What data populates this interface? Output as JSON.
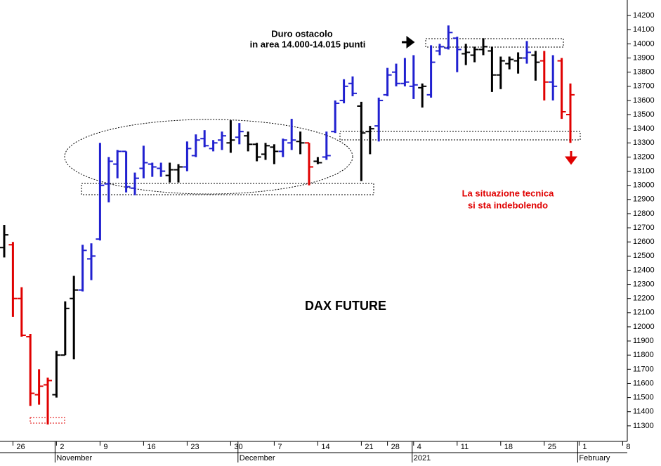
{
  "chart_data": {
    "type": "ohlc",
    "title": "DAX FUTURE",
    "annotations": [
      "Duro ostacolo",
      "in area 14.000-14.015 punti",
      "La situazione tecnica",
      "si sta indebolendo"
    ],
    "categories": [
      null,
      "26",
      null,
      null,
      null,
      null,
      "2",
      null,
      null,
      null,
      null,
      "9",
      null,
      null,
      null,
      null,
      "16",
      null,
      null,
      null,
      null,
      "23",
      null,
      null,
      null,
      null,
      "30",
      null,
      null,
      null,
      null,
      "7",
      null,
      null,
      null,
      null,
      "14",
      null,
      null,
      null,
      null,
      "21",
      null,
      null,
      "28",
      null,
      null,
      "4",
      null,
      null,
      null,
      null,
      "11",
      null,
      null,
      null,
      null,
      "18",
      null,
      null,
      null,
      null,
      "25",
      null,
      null,
      null,
      "1",
      null,
      null,
      null,
      null,
      "8"
    ],
    "month_labels": [
      null,
      null,
      null,
      null,
      null,
      null,
      "November",
      null,
      null,
      null,
      null,
      null,
      null,
      null,
      null,
      null,
      null,
      null,
      null,
      null,
      null,
      null,
      null,
      null,
      null,
      null,
      null,
      "December",
      null,
      null,
      null,
      null,
      null,
      null,
      null,
      null,
      null,
      null,
      null,
      null,
      null,
      null,
      null,
      null,
      null,
      null,
      null,
      "2021",
      null,
      null,
      null,
      null,
      null,
      null,
      null,
      null,
      null,
      null,
      null,
      null,
      null,
      null,
      null,
      null,
      null,
      null,
      "February",
      null,
      null,
      null,
      null,
      null
    ],
    "open": [
      12560,
      12580,
      12200,
      11930,
      11520,
      11590,
      11520,
      11800,
      12200,
      12260,
      12480,
      12620,
      13010,
      13150,
      13240,
      12980,
      13120,
      13150,
      13120,
      13070,
      13110,
      13130,
      13210,
      13330,
      13260,
      13320,
      13300,
      13340,
      13350,
      13290,
      13220,
      13270,
      13240,
      13300,
      13310,
      13300,
      13170,
      13200,
      13380,
      13600,
      13720,
      13560,
      13380,
      13420,
      13640,
      13800,
      13720,
      13700,
      13690,
      13640,
      13950,
      13970,
      14040,
      13930,
      13920,
      13960,
      13950,
      13780,
      13860,
      13880,
      13900,
      13920,
      13880,
      13730,
      13880,
      13500,
      null,
      null,
      null,
      null,
      null,
      null
    ],
    "high": [
      12720,
      12600,
      12280,
      11950,
      11700,
      11640,
      11830,
      12180,
      12360,
      12580,
      12590,
      13300,
      13200,
      13250,
      13240,
      13090,
      13280,
      13160,
      13160,
      13160,
      13150,
      13310,
      13360,
      13390,
      13320,
      13380,
      13460,
      13440,
      13380,
      13300,
      13300,
      13290,
      13330,
      13470,
      13380,
      13300,
      13200,
      13380,
      13600,
      13750,
      13770,
      13590,
      13420,
      13620,
      13830,
      13860,
      13900,
      13920,
      13720,
      13990,
      14000,
      14130,
      14050,
      14000,
      13980,
      14040,
      13980,
      13910,
      13910,
      13940,
      14020,
      13950,
      13950,
      13920,
      13900,
      13720,
      null,
      null,
      null,
      null,
      null,
      null
    ],
    "low": [
      12490,
      12070,
      11930,
      11440,
      11450,
      11310,
      11500,
      11800,
      11770,
      12250,
      12330,
      12610,
      12880,
      13050,
      12950,
      12930,
      13050,
      13060,
      13060,
      13020,
      13020,
      13100,
      13200,
      13270,
      13240,
      13250,
      13230,
      13290,
      13240,
      13170,
      13180,
      13150,
      13200,
      13250,
      13220,
      13000,
      13150,
      13180,
      13370,
      13580,
      13630,
      13030,
      13220,
      13310,
      13630,
      13700,
      13700,
      13610,
      13550,
      13620,
      13920,
      13960,
      13800,
      13850,
      13870,
      13920,
      13660,
      13680,
      13820,
      13790,
      13860,
      13740,
      13600,
      13600,
      13470,
      13300,
      null,
      null,
      null,
      null,
      null,
      null
    ],
    "close": [
      12650,
      12200,
      11940,
      11530,
      11580,
      11620,
      11800,
      12130,
      12260,
      12540,
      12500,
      13000,
      13170,
      13240,
      12990,
      13050,
      13160,
      13130,
      13100,
      13110,
      13130,
      13260,
      13320,
      13280,
      13300,
      13350,
      13320,
      13380,
      13290,
      13200,
      13280,
      13240,
      13320,
      13320,
      13300,
      13130,
      13160,
      13210,
      13580,
      13700,
      13650,
      13370,
      13400,
      13600,
      13780,
      13720,
      13730,
      13710,
      13700,
      13870,
      13980,
      14080,
      13960,
      13940,
      13960,
      13980,
      13780,
      13880,
      13890,
      13900,
      13940,
      13870,
      13730,
      13700,
      13520,
      13640,
      null,
      null,
      null,
      null,
      null,
      null
    ],
    "colors": [
      "#000000",
      "#e00000",
      "#e00000",
      "#e00000",
      "#e00000",
      "#e00000",
      "#000000",
      "#000000",
      "#000000",
      "#2020d0",
      "#2020d0",
      "#2020d0",
      "#2020d0",
      "#2020d0",
      "#2020d0",
      "#2020d0",
      "#2020d0",
      "#2020d0",
      "#2020d0",
      "#000000",
      "#000000",
      "#2020d0",
      "#2020d0",
      "#2020d0",
      "#2020d0",
      "#2020d0",
      "#000000",
      "#2020d0",
      "#000000",
      "#000000",
      "#000000",
      "#000000",
      "#2020d0",
      "#2020d0",
      "#000000",
      "#e00000",
      "#000000",
      "#2020d0",
      "#2020d0",
      "#2020d0",
      "#2020d0",
      "#000000",
      "#000000",
      "#2020d0",
      "#2020d0",
      "#2020d0",
      "#2020d0",
      "#2020d0",
      "#000000",
      "#2020d0",
      "#2020d0",
      "#2020d0",
      "#2020d0",
      "#000000",
      "#000000",
      "#000000",
      "#000000",
      "#000000",
      "#000000",
      "#000000",
      "#2020d0",
      "#000000",
      "#e00000",
      "#2020d0",
      "#e00000",
      "#e00000",
      null,
      null,
      null,
      null,
      null,
      null
    ],
    "ylim": [
      11190,
      14310
    ],
    "yticks": [
      11300,
      11400,
      11500,
      11600,
      11700,
      11800,
      11900,
      12000,
      12100,
      12200,
      12300,
      12400,
      12500,
      12600,
      12700,
      12800,
      12900,
      13000,
      13100,
      13200,
      13300,
      13400,
      13500,
      13600,
      13700,
      13800,
      13900,
      14000,
      14100,
      14200
    ],
    "grid": false
  }
}
